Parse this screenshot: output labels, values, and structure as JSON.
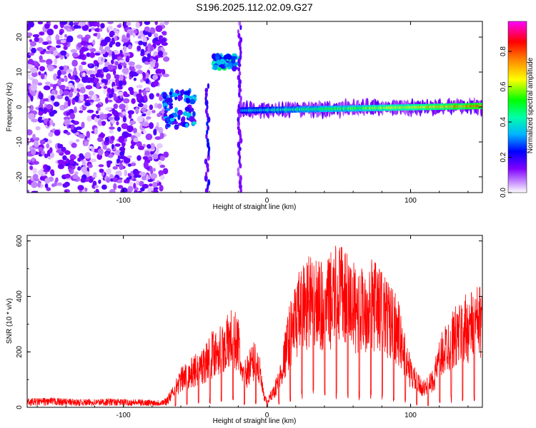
{
  "title": "S196.2025.112.02.09.G27",
  "chart_data": [
    {
      "type": "heatmap",
      "xlabel": "Height of straight line (km)",
      "ylabel": "Frequency (Hz)",
      "xlim": [
        -167,
        150
      ],
      "ylim": [
        -24.5,
        24.5
      ],
      "x_ticks": [
        -100,
        0,
        100
      ],
      "y_ticks": [
        -20,
        -10,
        0,
        10,
        20
      ],
      "colorbar": {
        "label": "Normalized spectral amplitude",
        "range": [
          0,
          0.97
        ],
        "ticks": [
          0.0,
          0.2,
          0.4,
          0.6,
          0.8
        ],
        "tick_labels": [
          "0.0",
          "0.2",
          "0.4",
          "0.6",
          "0.8"
        ],
        "colormap": [
          "#ffffff",
          "#8000ff",
          "#0000ff",
          "#00ffff",
          "#00ff00",
          "#ffff00",
          "#ff8000",
          "#ff0000",
          "#ff00ff"
        ]
      },
      "regions": [
        {
          "kind": "noise",
          "x": [
            -167,
            -70
          ],
          "y": [
            -24.5,
            24.5
          ],
          "amplitude": 0.1
        },
        {
          "kind": "cluster",
          "x": [
            -72,
            -50
          ],
          "y": [
            -6,
            5
          ],
          "amplitude": 0.35
        },
        {
          "kind": "streak",
          "x": [
            -43,
            -40
          ],
          "y": [
            -24,
            7
          ],
          "amplitude": 0.2
        },
        {
          "kind": "cluster",
          "x": [
            -37,
            -20
          ],
          "y": [
            11,
            15
          ],
          "amplitude": 0.45
        },
        {
          "kind": "streak",
          "x": [
            -20,
            -18
          ],
          "y": [
            -24,
            24
          ],
          "amplitude": 0.15
        },
        {
          "kind": "line",
          "x": [
            -18,
            150
          ],
          "y": [
            -1,
            0.3
          ],
          "amplitude": 0.8
        }
      ],
      "grid": false
    },
    {
      "type": "line",
      "xlabel": "Height of straight line (km)",
      "ylabel": "SNR (10 * v/v)",
      "xlim": [
        -167,
        150
      ],
      "ylim": [
        0,
        620
      ],
      "x_ticks": [
        -100,
        0,
        100
      ],
      "y_ticks": [
        0,
        200,
        400,
        600
      ],
      "color": "#ff0000",
      "series": [
        {
          "x": [
            -167,
            -150,
            -130,
            -110,
            -90,
            -75,
            -70,
            -65,
            -60,
            -55,
            -50,
            -45,
            -40,
            -35,
            -30,
            -25,
            -20,
            -17,
            -12,
            -8,
            -5,
            -2,
            0,
            5,
            10,
            15,
            20,
            25,
            30,
            35,
            40,
            45,
            50,
            55,
            60,
            65,
            70,
            75,
            80,
            85,
            90,
            95,
            100,
            105,
            110,
            115,
            120,
            125,
            130,
            135,
            140,
            145,
            150
          ],
          "values": [
            20,
            22,
            18,
            20,
            18,
            17,
            22,
            70,
            120,
            140,
            160,
            180,
            220,
            250,
            260,
            300,
            280,
            120,
            180,
            210,
            150,
            40,
            25,
            70,
            150,
            300,
            380,
            440,
            470,
            450,
            430,
            470,
            500,
            470,
            440,
            420,
            440,
            450,
            420,
            380,
            350,
            250,
            150,
            100,
            80,
            110,
            200,
            270,
            300,
            320,
            350,
            360,
            380
          ]
        }
      ],
      "grid": false
    }
  ]
}
